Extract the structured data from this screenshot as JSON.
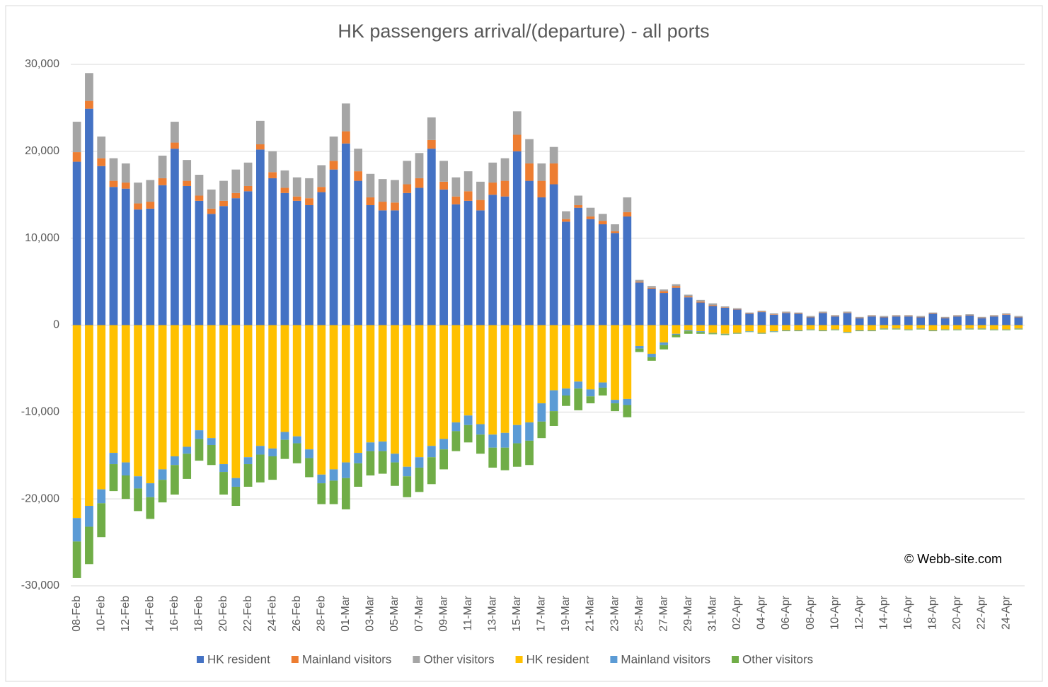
{
  "chart_data": {
    "type": "bar",
    "stacked": true,
    "title": "HK passengers arrival/(departure) - all ports",
    "annotation": "© Webb-site.com",
    "categories": [
      "08-Feb",
      null,
      "10-Feb",
      null,
      "12-Feb",
      null,
      "14-Feb",
      null,
      "16-Feb",
      null,
      "18-Feb",
      null,
      "20-Feb",
      null,
      "22-Feb",
      null,
      "24-Feb",
      null,
      "26-Feb",
      null,
      "28-Feb",
      null,
      "01-Mar",
      null,
      "03-Mar",
      null,
      "05-Mar",
      null,
      "07-Mar",
      null,
      "09-Mar",
      null,
      "11-Mar",
      null,
      "13-Mar",
      null,
      "15-Mar",
      null,
      "17-Mar",
      null,
      "19-Mar",
      null,
      "21-Mar",
      null,
      "23-Mar",
      null,
      "25-Mar",
      null,
      "27-Mar",
      null,
      "29-Mar",
      null,
      "31-Mar",
      null,
      "02-Apr",
      null,
      "04-Apr",
      null,
      "06-Apr",
      null,
      "08-Apr",
      null,
      "10-Apr",
      null,
      "12-Apr",
      null,
      "14-Apr",
      null,
      "16-Apr",
      null,
      "18-Apr",
      null,
      "20-Apr",
      null,
      "22-Apr",
      null,
      "24-Apr",
      null
    ],
    "ylim": [
      -30000,
      30000
    ],
    "yticks": [
      {
        "value": -30000,
        "label": "-30,000"
      },
      {
        "value": -20000,
        "label": "-20,000"
      },
      {
        "value": -10000,
        "label": "-10,000"
      },
      0,
      {
        "value": 10000,
        "label": "10,000"
      },
      {
        "value": 20000,
        "label": "20,000"
      },
      {
        "value": 30000,
        "label": "30,000"
      }
    ],
    "grid": true,
    "legend": "bottom",
    "series": [
      {
        "name": "HK resident",
        "color": "#4472c4",
        "values": [
          18800,
          24900,
          18300,
          15900,
          15700,
          13300,
          13400,
          16100,
          20300,
          16000,
          14300,
          12800,
          13700,
          14600,
          15400,
          20200,
          16900,
          15200,
          14300,
          13800,
          15300,
          17900,
          20900,
          16600,
          13800,
          13200,
          13200,
          15200,
          15800,
          20300,
          15600,
          13900,
          14300,
          13200,
          15000,
          14800,
          20000,
          16600,
          14700,
          16200,
          11900,
          13500,
          12200,
          11600,
          10600,
          12500,
          4900,
          4200,
          3700,
          4300,
          3200,
          2600,
          2200,
          2000,
          1800,
          1300,
          1500,
          1200,
          1400,
          1300,
          900,
          1400,
          1000,
          1400,
          800,
          1000,
          900,
          1000,
          1000,
          900,
          1300,
          800,
          1000,
          1100,
          800,
          1000,
          1200,
          900
        ]
      },
      {
        "name": "Mainland visitors",
        "color": "#ed7d31",
        "values": [
          1100,
          900,
          900,
          700,
          700,
          700,
          800,
          800,
          700,
          600,
          600,
          600,
          600,
          600,
          600,
          600,
          700,
          600,
          500,
          800,
          600,
          1000,
          1400,
          1100,
          900,
          1000,
          900,
          1000,
          1100,
          1000,
          900,
          900,
          1100,
          1200,
          1400,
          1800,
          1900,
          2000,
          1900,
          2400,
          300,
          300,
          300,
          400,
          200,
          500,
          100,
          100,
          200,
          200,
          100,
          100,
          100,
          50,
          50,
          50,
          50,
          50,
          50,
          50,
          50,
          50,
          50,
          50,
          50,
          50,
          50,
          50,
          50,
          50,
          50,
          50,
          50,
          50,
          50,
          50,
          50,
          50
        ]
      },
      {
        "name": "Other visitors",
        "color": "#a5a5a5",
        "values": [
          3500,
          3200,
          2500,
          2600,
          2200,
          2400,
          2500,
          2600,
          2400,
          2400,
          2400,
          2200,
          2300,
          2700,
          2700,
          2700,
          2400,
          2000,
          2200,
          2300,
          2500,
          2800,
          3200,
          2600,
          2700,
          2600,
          2600,
          2700,
          2900,
          2600,
          2400,
          2200,
          2300,
          2100,
          2300,
          2600,
          2700,
          2800,
          2000,
          1900,
          900,
          1100,
          1000,
          800,
          800,
          1700,
          200,
          200,
          200,
          200,
          200,
          200,
          200,
          100,
          100,
          100,
          100,
          100,
          100,
          100,
          100,
          100,
          100,
          100,
          100,
          100,
          100,
          100,
          100,
          100,
          100,
          100,
          100,
          100,
          100,
          100,
          100,
          100
        ]
      },
      {
        "name": "HK resident",
        "color": "#ffc000",
        "values": [
          -22200,
          -20800,
          -18900,
          -14700,
          -15800,
          -17400,
          -18200,
          -16600,
          -15100,
          -14000,
          -12100,
          -13000,
          -16000,
          -17600,
          -15200,
          -13900,
          -14200,
          -12300,
          -12800,
          -14300,
          -17200,
          -16600,
          -15800,
          -14700,
          -13500,
          -13400,
          -14800,
          -16300,
          -15200,
          -13900,
          -13100,
          -11200,
          -10400,
          -11400,
          -12600,
          -12400,
          -11500,
          -11200,
          -9000,
          -7500,
          -7300,
          -6500,
          -7400,
          -6600,
          -8600,
          -8500,
          -2400,
          -3300,
          -2000,
          -1000,
          -600,
          -700,
          -900,
          -1000,
          -900,
          -700,
          -900,
          -700,
          -600,
          -600,
          -500,
          -600,
          -500,
          -800,
          -600,
          -600,
          -400,
          -400,
          -500,
          -400,
          -600,
          -500,
          -500,
          -400,
          -400,
          -500,
          -500,
          -400
        ]
      },
      {
        "name": "Mainland visitors",
        "color": "#5b9bd5",
        "values": [
          -2700,
          -2400,
          -1600,
          -1300,
          -1500,
          -1400,
          -1600,
          -1200,
          -1000,
          -800,
          -1000,
          -800,
          -900,
          -1000,
          -800,
          -1000,
          -900,
          -900,
          -800,
          -1000,
          -1000,
          -1300,
          -1800,
          -1200,
          -1000,
          -1100,
          -1000,
          -1100,
          -1200,
          -1300,
          -1200,
          -1000,
          -1100,
          -1200,
          -1500,
          -1700,
          -2100,
          -2100,
          -2100,
          -2400,
          -800,
          -800,
          -800,
          -600,
          -400,
          -700,
          -300,
          -400,
          -300,
          -100,
          -100,
          -100,
          -50,
          -50,
          -50,
          -50,
          -50,
          -50,
          -50,
          -50,
          -50,
          -50,
          -50,
          -50,
          -50,
          -50,
          -50,
          -50,
          -50,
          -50,
          -50,
          -50,
          -50,
          -50,
          -50,
          -50,
          -50,
          -50
        ]
      },
      {
        "name": "Other visitors",
        "color": "#70ad47",
        "values": [
          -4200,
          -4300,
          -3900,
          -3100,
          -2700,
          -2600,
          -2500,
          -2600,
          -3400,
          -2900,
          -2500,
          -2300,
          -2600,
          -2200,
          -2600,
          -3200,
          -2700,
          -2200,
          -2300,
          -2200,
          -2400,
          -2700,
          -3600,
          -2700,
          -2800,
          -2600,
          -2700,
          -2400,
          -2800,
          -3100,
          -2300,
          -2300,
          -2000,
          -2200,
          -2300,
          -2600,
          -2700,
          -2800,
          -1900,
          -1700,
          -1200,
          -2500,
          -800,
          -900,
          -900,
          -1400,
          -400,
          -400,
          -500,
          -300,
          -300,
          -200,
          -100,
          -100,
          -50,
          -50,
          -50,
          -50,
          -50,
          -50,
          -50,
          -50,
          -50,
          -50,
          -50,
          -50,
          -50,
          -50,
          -50,
          -50,
          -50,
          -50,
          -50,
          -50,
          -50,
          -50,
          -50,
          -50
        ]
      }
    ]
  }
}
